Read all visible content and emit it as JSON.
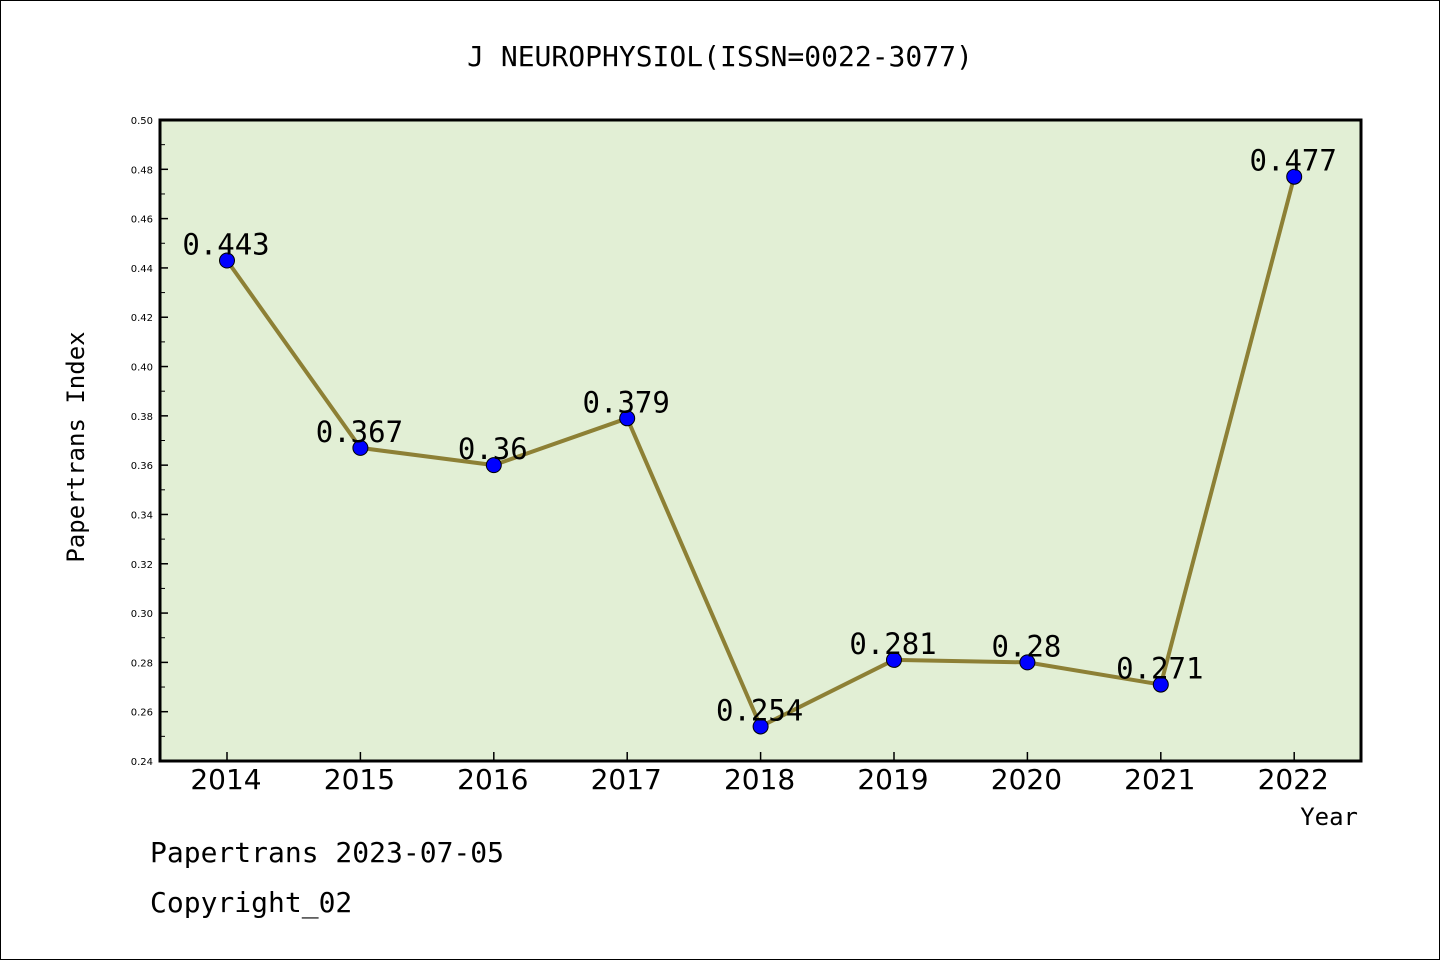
{
  "chart_data": {
    "type": "line",
    "title": "J NEUROPHYSIOL(ISSN=0022-3077)",
    "xlabel": "Year",
    "ylabel": "Papertrans Index",
    "categories": [
      "2014",
      "2015",
      "2016",
      "2017",
      "2018",
      "2019",
      "2020",
      "2021",
      "2022"
    ],
    "series": [
      {
        "values": [
          0.443,
          0.367,
          0.36,
          0.379,
          0.254,
          0.281,
          0.28,
          0.271,
          0.477
        ],
        "data_labels": [
          "0.443",
          "0.367",
          "0.36",
          "0.379",
          "0.254",
          "0.281",
          "0.28",
          "0.271",
          "0.477"
        ]
      }
    ],
    "ylim": [
      0.24,
      0.5
    ],
    "yticks": [
      "0.24",
      "0.26",
      "0.28",
      "0.30",
      "0.32",
      "0.34",
      "0.36",
      "0.38",
      "0.40",
      "0.42",
      "0.44",
      "0.46",
      "0.48",
      "0.50"
    ],
    "grid": false,
    "legend": "none",
    "colors": {
      "plot_background": "#e2efd5",
      "line": "#8d8035",
      "marker": "#0000ff"
    }
  },
  "footer": {
    "line1": "Papertrans 2023-07-05",
    "line2": "Copyright_02"
  }
}
